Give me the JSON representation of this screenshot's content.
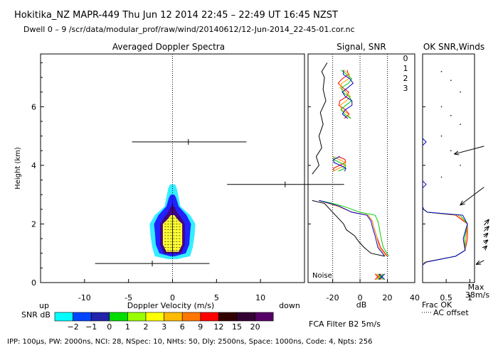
{
  "header": {
    "line1": "Hokitika_NZ  MAPR-449  Thu Jun 12 2014 22:45 – 22:49 UT 16:45 NZST",
    "line2": "Dwell  0 –  9   /scr/data/modular_prof/raw/wind/20140612/12-Jun-2014_22-45-01.cor.nc"
  },
  "footer": {
    "params": "IPP: 100µs,  PW: 2000ns,  NCI:  28,  NSpec: 10, NHts: 50,  Dly: 2500ns,  Space: 1000ns,  Code: 4,  Npts: 256",
    "filter": "FCA Filter B2  5m/s"
  },
  "colors": {
    "snr_scale": [
      "#00ffff",
      "#0044ff",
      "#2222aa",
      "#00dd00",
      "#99ff00",
      "#ffff00",
      "#ffbb00",
      "#ff7700",
      "#ff0000",
      "#330000",
      "#330033",
      "#550066"
    ],
    "core_fill": "#ffff33",
    "ring_cyan": "#33eeff",
    "ring_blue": "#2222ff",
    "ring_purple": "#440088",
    "beam0": "#ff0000",
    "beam1": "#ff9900",
    "beam2": "#00cc00",
    "beam3": "#0000cc"
  },
  "chart_data": [
    {
      "type": "heatmap",
      "title": "Averaged Doppler Spectra",
      "xlabel": "Doppler Velocity (m/s)",
      "ylabel": "Height (km)",
      "xlim": [
        -15,
        15
      ],
      "ylim": [
        0,
        7.8
      ],
      "x_ticks": [
        -10,
        -5,
        0,
        5,
        10
      ],
      "y_ticks": [
        0,
        2,
        4,
        6
      ],
      "zero_line": "dotted",
      "corner_labels": {
        "left": "up",
        "right": "down"
      },
      "velocity_error_bars": [
        {
          "height": 0.65,
          "center": -2.3,
          "low": -8.8,
          "high": 4.2
        },
        {
          "height": 3.35,
          "center": 12.8,
          "low": 6.2,
          "high": 19.5
        },
        {
          "height": 4.8,
          "center": 1.8,
          "low": -4.6,
          "high": 8.4
        }
      ],
      "colorbar": {
        "label": "SNR dB",
        "levels": [
          "−2",
          "−1",
          "0",
          "1",
          "2",
          "3",
          "6",
          "9",
          "12",
          "15",
          "20"
        ]
      }
    },
    {
      "type": "line",
      "title": "Signal, SNR",
      "xlabel": "dB",
      "xlim": [
        -38,
        40
      ],
      "ylim": [
        0,
        7.8
      ],
      "x_ticks": [
        -20,
        0,
        20,
        40
      ],
      "noise_label": "Noise",
      "series": [
        {
          "name": "0",
          "x": [
            20,
            15,
            12,
            10,
            9,
            6,
            -6,
            -15,
            -22,
            -30
          ],
          "y": [
            0.9,
            1.2,
            1.6,
            1.9,
            2.1,
            2.3,
            2.4,
            2.6,
            2.7,
            2.8
          ]
        },
        {
          "name": "1",
          "x": [
            19,
            14,
            12,
            10,
            9,
            6,
            -6,
            -16,
            -23,
            -30
          ],
          "y": [
            0.9,
            1.2,
            1.6,
            1.9,
            2.1,
            2.3,
            2.4,
            2.6,
            2.7,
            2.8
          ]
        },
        {
          "name": "2",
          "x": [
            21,
            17,
            15,
            14,
            13,
            11,
            0,
            -12,
            -20,
            -30
          ],
          "y": [
            0.9,
            1.2,
            1.6,
            1.9,
            2.1,
            2.3,
            2.4,
            2.6,
            2.7,
            2.8
          ]
        },
        {
          "name": "3",
          "x": [
            18,
            13,
            11,
            9,
            8,
            5,
            -6,
            -15,
            -22,
            -30
          ],
          "y": [
            0.9,
            1.2,
            1.6,
            1.9,
            2.1,
            2.3,
            2.4,
            2.6,
            2.7,
            2.8
          ]
        },
        {
          "name": "signal",
          "x": [
            18,
            8,
            3,
            -1,
            -4,
            -10,
            -12,
            -14,
            -18,
            -22,
            -26,
            -35
          ],
          "y": [
            0.9,
            1.0,
            1.2,
            1.4,
            1.6,
            1.8,
            2.0,
            2.1,
            2.3,
            2.5,
            2.7,
            2.8
          ]
        },
        {
          "name": "upper-signal",
          "x": [
            -35,
            -30,
            -32,
            -28,
            -30,
            -27,
            -29,
            -25,
            -27,
            -26,
            -28,
            -24
          ],
          "y": [
            3.7,
            4.0,
            4.3,
            4.6,
            5.0,
            5.4,
            5.8,
            6.2,
            6.6,
            7.0,
            7.2,
            7.5
          ]
        }
      ]
    },
    {
      "type": "line",
      "title": "OK SNR,Winds",
      "xlabel": "Frac OK",
      "xlim": [
        0,
        1.1
      ],
      "ylim": [
        0,
        7.8
      ],
      "x_ticks": [
        0.5,
        1
      ],
      "x_tick_labels": [
        "0.5",
        "1"
      ],
      "beam_labels": [
        "0",
        "1",
        "2",
        "3"
      ],
      "legend_note": "AC offset",
      "max_label": "Max",
      "max_value": "38m/s",
      "winds": [
        {
          "height": 4.8,
          "u": -30,
          "v": -8
        },
        {
          "height": 3.4,
          "u": -24,
          "v": -18
        },
        {
          "height": 2.1,
          "u": 5,
          "v": 6
        },
        {
          "height": 1.9,
          "u": 5,
          "v": 5
        },
        {
          "height": 1.7,
          "u": 4,
          "v": 4
        },
        {
          "height": 1.5,
          "u": 4,
          "v": 3
        },
        {
          "height": 1.3,
          "u": 3,
          "v": 3
        },
        {
          "height": 0.9,
          "u": -8,
          "v": -4
        }
      ]
    }
  ]
}
